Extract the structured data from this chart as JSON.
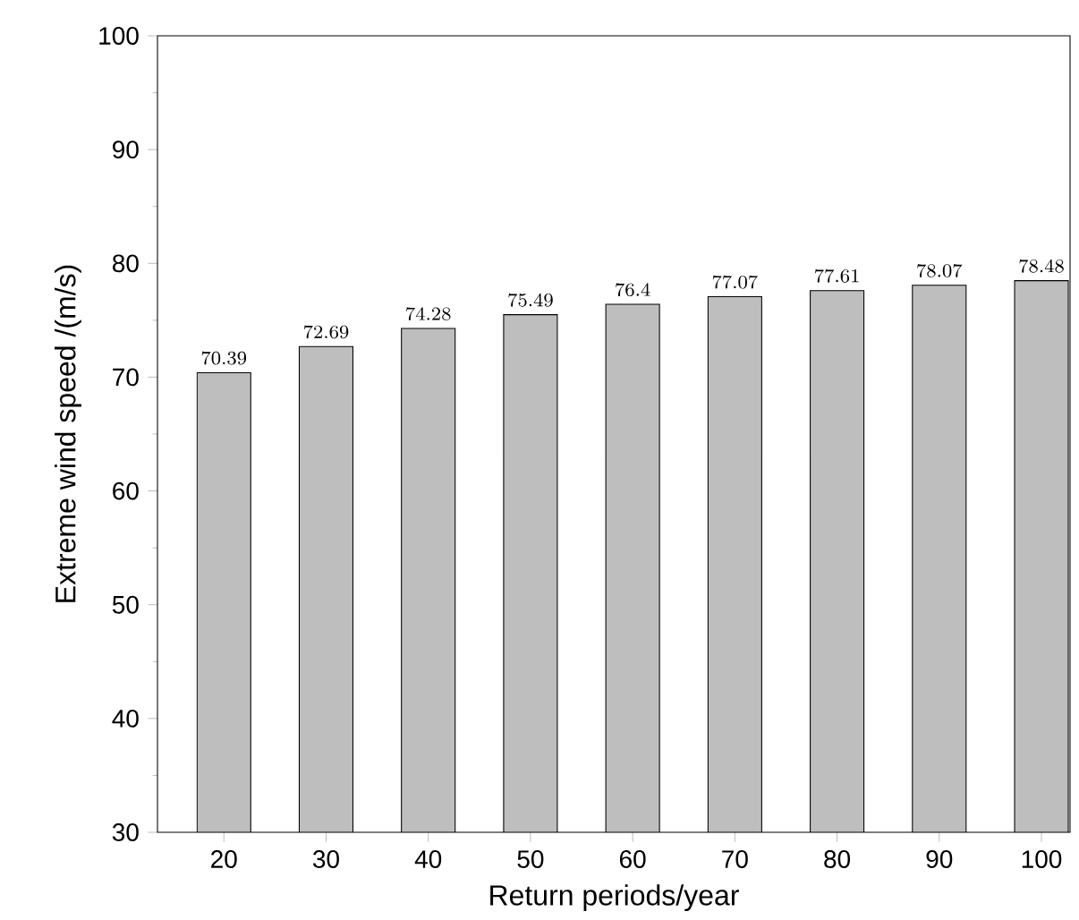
{
  "chart_data": {
    "type": "bar",
    "xlabel": "Return periods/year",
    "ylabel": "Extreme wind speed /(m/s)",
    "categories": [
      "20",
      "30",
      "40",
      "50",
      "60",
      "70",
      "80",
      "90",
      "100"
    ],
    "values": [
      70.39,
      72.69,
      74.28,
      75.49,
      76.4,
      77.07,
      77.61,
      78.07,
      78.48
    ],
    "color": "#bebebe",
    "ylim": [
      30,
      100
    ],
    "yticks": [
      30,
      40,
      50,
      60,
      70,
      80,
      90,
      100
    ],
    "data_labels": true
  }
}
